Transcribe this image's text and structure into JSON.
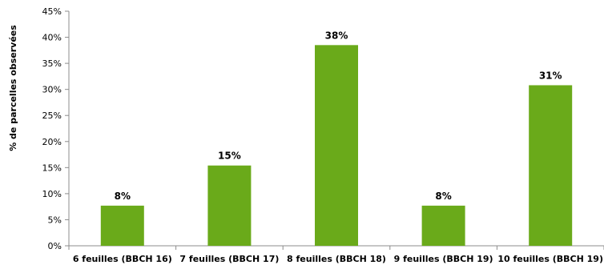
{
  "chart_data": {
    "type": "bar",
    "title": "",
    "xlabel": "",
    "ylabel": "% de parcelles observées",
    "categories": [
      "6 feuilles (BBCH 16)",
      "7 feuilles (BBCH 17)",
      "8 feuilles (BBCH 18)",
      "9 feuilles (BBCH 19)",
      "10 feuilles (BBCH 19)"
    ],
    "values": [
      7.7,
      15.4,
      38.5,
      7.7,
      30.8
    ],
    "data_labels": [
      "8%",
      "15%",
      "38%",
      "8%",
      "31%"
    ],
    "ylim": [
      0,
      45
    ],
    "yticks": [
      0,
      5,
      10,
      15,
      20,
      25,
      30,
      35,
      40,
      45
    ],
    "ytick_labels": [
      "0%",
      "5%",
      "10%",
      "15%",
      "20%",
      "25%",
      "30%",
      "35%",
      "40%",
      "45%"
    ],
    "grid": false,
    "legend": "none",
    "bar_color": "#6aaa1a"
  }
}
